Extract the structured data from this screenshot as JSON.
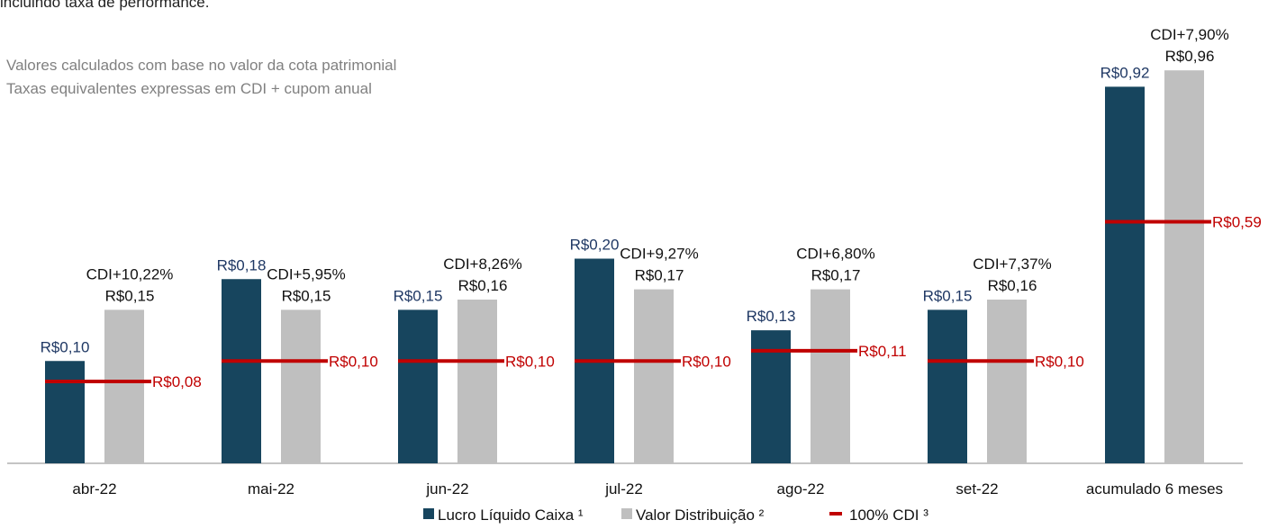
{
  "chart_data": [
    {
      "type": "bar",
      "title": "incluindo taxa de performance.",
      "notes": [
        "Valores calculados com base no valor da cota patrimonial",
        "Taxas equivalentes expressas em CDI + cupom anual"
      ],
      "categories": [
        "abr-22",
        "mai-22",
        "jun-22",
        "jul-22",
        "ago-22",
        "set-22"
      ],
      "ylim": [
        0,
        0.4
      ],
      "series": [
        {
          "name": "Lucro Líquido Caixa ¹",
          "color": "#17455e",
          "values": [
            0.1,
            0.18,
            0.15,
            0.2,
            0.13,
            0.15
          ],
          "value_labels": [
            "R$0,10",
            "R$0,18",
            "R$0,15",
            "R$0,20",
            "R$0,13",
            "R$0,15"
          ]
        },
        {
          "name": "Valor Distribuição ²",
          "color": "#bfbfbf",
          "values": [
            0.15,
            0.15,
            0.16,
            0.17,
            0.17,
            0.16
          ],
          "value_labels": [
            "R$0,15",
            "R$0,15",
            "R$0,16",
            "R$0,17",
            "R$0,17",
            "R$0,16"
          ],
          "annotations": [
            "CDI+10,22%",
            "CDI+5,95%",
            "CDI+8,26%",
            "CDI+9,27%",
            "CDI+6,80%",
            "CDI+7,37%"
          ]
        },
        {
          "name": "100% CDI ³",
          "type": "line",
          "color": "#c00000",
          "values": [
            0.08,
            0.1,
            0.1,
            0.1,
            0.11,
            0.1
          ],
          "value_labels": [
            "R$0,08",
            "R$0,10",
            "R$0,10",
            "R$0,10",
            "R$0,11",
            "R$0,10"
          ]
        }
      ]
    },
    {
      "type": "bar",
      "categories": [
        "acumulado 6 meses"
      ],
      "ylim": [
        0,
        1
      ],
      "series": [
        {
          "color": "#17455e",
          "values": [
            0.92
          ],
          "value_labels": [
            "R$0,92"
          ]
        },
        {
          "color": "#bfbfbf",
          "values": [
            0.96
          ],
          "value_labels": [
            "R$0,96"
          ],
          "annotations": [
            "CDI+7,90%"
          ]
        },
        {
          "type": "line",
          "color": "#c00000",
          "values": [
            0.59
          ],
          "value_labels": [
            "R$0,59"
          ]
        }
      ]
    }
  ]
}
